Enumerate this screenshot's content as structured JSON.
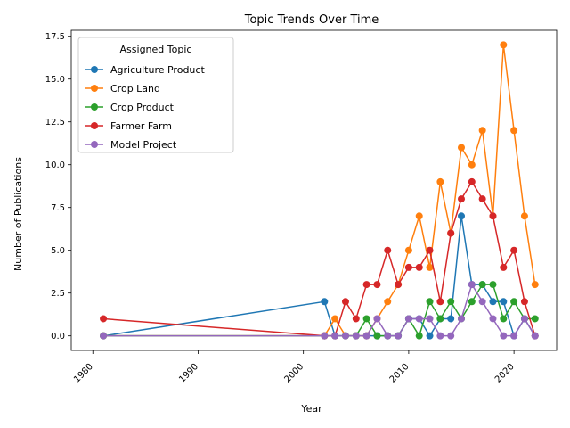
{
  "chart_data": {
    "type": "line",
    "title": "Topic Trends Over Time",
    "xlabel": "Year",
    "ylabel": "Number of Publications",
    "xlim": [
      1977.95,
      2024.05
    ],
    "ylim": [
      -0.85,
      17.85
    ],
    "xticks": [
      1980,
      1990,
      2000,
      2010,
      2020
    ],
    "yticks": [
      0.0,
      2.5,
      5.0,
      7.5,
      10.0,
      12.5,
      15.0,
      17.5
    ],
    "xtick_labels": [
      "1980",
      "1990",
      "2000",
      "2010",
      "2020"
    ],
    "ytick_labels": [
      "0.0",
      "2.5",
      "5.0",
      "7.5",
      "10.0",
      "12.5",
      "15.0",
      "17.5"
    ],
    "grid": false,
    "legend": {
      "title": "Assigned Topic",
      "placement": "top-left"
    },
    "series": [
      {
        "name": "Agriculture Product",
        "color": "#1f77b4",
        "x": [
          1981,
          2002,
          2003,
          2004,
          2005,
          2006,
          2007,
          2008,
          2009,
          2010,
          2011,
          2012,
          2013,
          2014,
          2015,
          2016,
          2017,
          2018,
          2019,
          2020,
          2021,
          2022
        ],
        "y": [
          0,
          2,
          0,
          0,
          0,
          0,
          0,
          0,
          0,
          1,
          1,
          0,
          1,
          1,
          7,
          3,
          3,
          2,
          2,
          0,
          1,
          0
        ]
      },
      {
        "name": "Crop Land",
        "color": "#ff7f0e",
        "x": [
          1981,
          2002,
          2003,
          2004,
          2005,
          2006,
          2007,
          2008,
          2009,
          2010,
          2011,
          2012,
          2013,
          2014,
          2015,
          2016,
          2017,
          2018,
          2019,
          2020,
          2021,
          2022
        ],
        "y": [
          0,
          0,
          1,
          0,
          0,
          0,
          1,
          2,
          3,
          5,
          7,
          4,
          9,
          6,
          11,
          10,
          12,
          7,
          17,
          12,
          7,
          3
        ]
      },
      {
        "name": "Crop Product",
        "color": "#2ca02c",
        "x": [
          1981,
          2002,
          2003,
          2004,
          2005,
          2006,
          2007,
          2008,
          2009,
          2010,
          2011,
          2012,
          2013,
          2014,
          2015,
          2016,
          2017,
          2018,
          2019,
          2020,
          2021,
          2022
        ],
        "y": [
          0,
          0,
          0,
          0,
          0,
          1,
          0,
          0,
          0,
          1,
          0,
          2,
          1,
          2,
          1,
          2,
          3,
          3,
          1,
          2,
          1,
          1
        ]
      },
      {
        "name": "Farmer Farm",
        "color": "#d62728",
        "x": [
          1981,
          2002,
          2003,
          2004,
          2005,
          2006,
          2007,
          2008,
          2009,
          2010,
          2011,
          2012,
          2013,
          2014,
          2015,
          2016,
          2017,
          2018,
          2019,
          2020,
          2021,
          2022
        ],
        "y": [
          1,
          0,
          0,
          2,
          1,
          3,
          3,
          5,
          3,
          4,
          4,
          5,
          2,
          6,
          8,
          9,
          8,
          7,
          4,
          5,
          2,
          0
        ]
      },
      {
        "name": "Model Project",
        "color": "#9467bd",
        "x": [
          1981,
          2002,
          2003,
          2004,
          2005,
          2006,
          2007,
          2008,
          2009,
          2010,
          2011,
          2012,
          2013,
          2014,
          2015,
          2016,
          2017,
          2018,
          2019,
          2020,
          2021,
          2022
        ],
        "y": [
          0,
          0,
          0,
          0,
          0,
          0,
          1,
          0,
          0,
          1,
          1,
          1,
          0,
          0,
          1,
          3,
          2,
          1,
          0,
          0,
          1,
          0
        ]
      }
    ]
  }
}
